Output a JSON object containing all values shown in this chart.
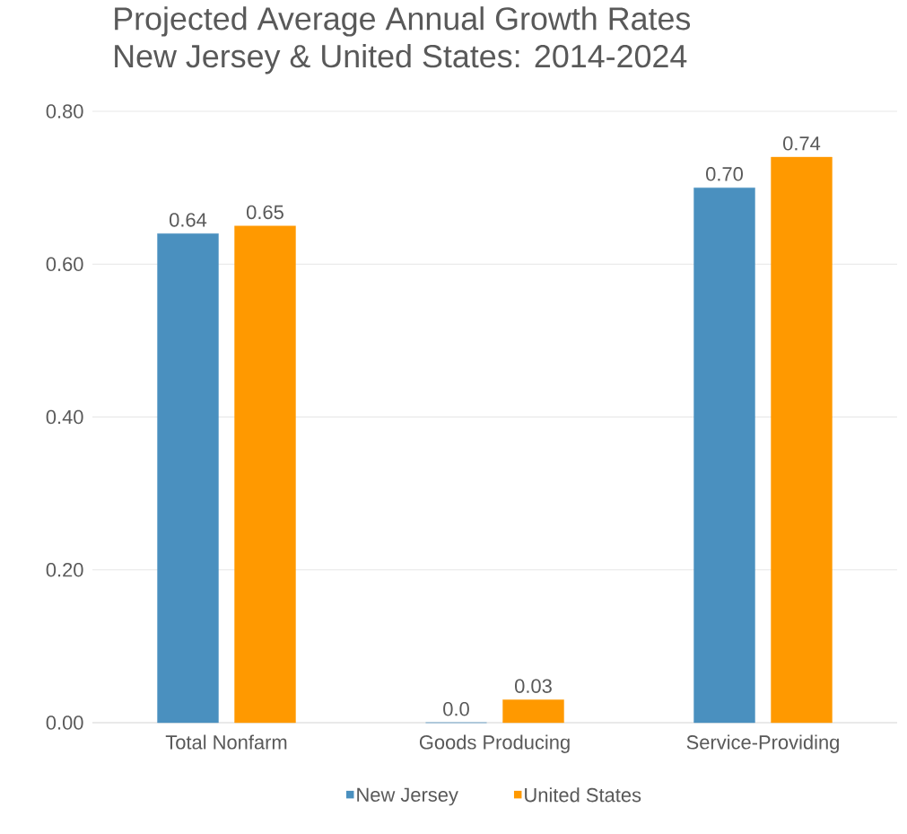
{
  "chart_data": {
    "type": "bar",
    "title": "Projected Average Annual Growth Rates",
    "subtitle": "New Jersey & United States:  2014-2024",
    "categories": [
      "Total Nonfarm",
      "Goods Producing",
      "Service-Providing"
    ],
    "series": [
      {
        "name": "New Jersey",
        "color": "#4a90bf",
        "values": [
          0.64,
          0.0,
          0.7
        ],
        "value_labels": [
          "0.64",
          "0.0",
          "0.70"
        ]
      },
      {
        "name": "United States",
        "color": "#ff9900",
        "values": [
          0.65,
          0.03,
          0.74
        ],
        "value_labels": [
          "0.65",
          "0.03",
          "0.74"
        ]
      }
    ],
    "ylim": [
      0,
      0.8
    ],
    "yticks": [
      {
        "value": 0,
        "label": "0.00"
      },
      {
        "value": 0.2,
        "label": "0.20"
      },
      {
        "value": 0.4,
        "label": "0.40"
      },
      {
        "value": 0.6,
        "label": "0.60"
      },
      {
        "value": 0.8,
        "label": "0.80"
      }
    ],
    "grid": "y",
    "legend": "bottom"
  }
}
